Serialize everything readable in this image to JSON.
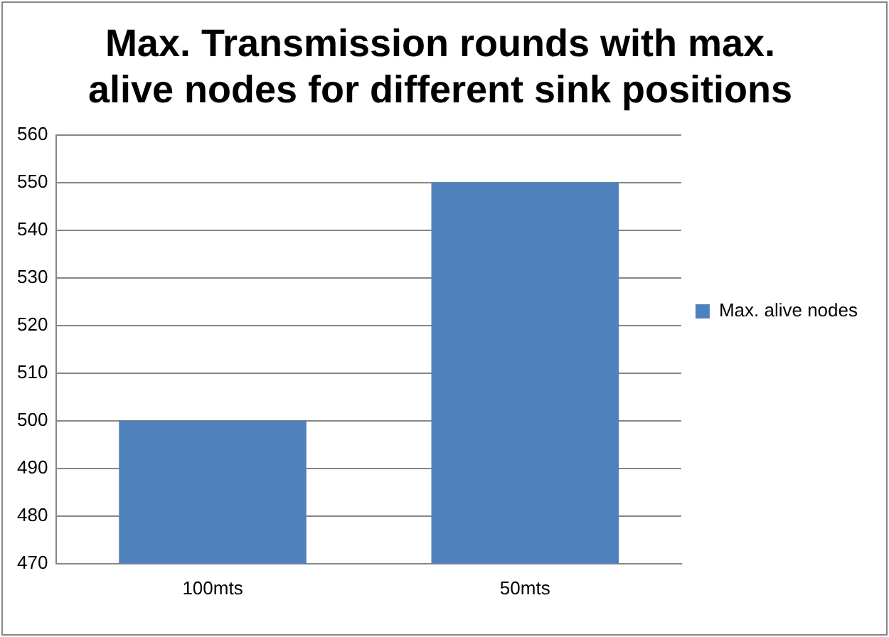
{
  "chart_data": {
    "type": "bar",
    "title": "Max. Transmission rounds with max. alive nodes for different sink positions",
    "categories": [
      "100mts",
      "50mts"
    ],
    "series": [
      {
        "name": "Max. alive nodes",
        "color": "#4f81bd",
        "values": [
          500,
          550
        ]
      }
    ],
    "ylim": [
      470,
      560
    ],
    "yticks": [
      470,
      480,
      490,
      500,
      510,
      520,
      530,
      540,
      550,
      560
    ],
    "grid": "y",
    "legend": "right"
  }
}
